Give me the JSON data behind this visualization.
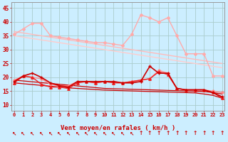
{
  "x": [
    0,
    1,
    2,
    3,
    4,
    5,
    6,
    7,
    8,
    9,
    10,
    11,
    12,
    13,
    14,
    15,
    16,
    17,
    18,
    19,
    20,
    21,
    22,
    23
  ],
  "background_color": "#cceeff",
  "grid_color": "#aacccc",
  "xlabel": "Vent moyen/en rafales ( km/h )",
  "xlabel_color": "#cc0000",
  "tick_color": "#cc0000",
  "yticks": [
    10,
    15,
    20,
    25,
    30,
    35,
    40,
    45
  ],
  "ylim": [
    8,
    47
  ],
  "xlim": [
    -0.3,
    23.3
  ],
  "lines": [
    {
      "y": [
        35.5,
        37.5,
        39.5,
        39.5,
        35.0,
        34.5,
        34.0,
        33.5,
        33.0,
        32.5,
        32.5,
        32.0,
        31.5,
        35.5,
        42.5,
        41.5,
        40.0,
        41.5,
        35.0,
        28.5,
        28.5,
        28.5,
        20.5,
        20.5
      ],
      "color": "#ffaaaa",
      "linewidth": 1.0,
      "marker": "D",
      "markersize": 2.0,
      "zorder": 3
    },
    {
      "y": [
        36.5,
        36.0,
        35.5,
        35.0,
        34.5,
        34.0,
        33.5,
        33.0,
        32.5,
        32.0,
        31.5,
        31.0,
        30.5,
        30.0,
        29.5,
        29.0,
        28.5,
        28.0,
        27.5,
        27.0,
        26.5,
        26.0,
        25.5,
        25.0
      ],
      "color": "#ffbbbb",
      "linewidth": 1.0,
      "marker": null,
      "markersize": 0,
      "zorder": 2
    },
    {
      "y": [
        35.0,
        34.5,
        34.0,
        33.5,
        33.0,
        32.5,
        32.0,
        31.5,
        31.0,
        30.5,
        30.0,
        29.5,
        29.0,
        28.5,
        28.0,
        27.5,
        27.0,
        26.5,
        26.0,
        25.5,
        25.0,
        24.5,
        24.0,
        23.5
      ],
      "color": "#ffcccc",
      "linewidth": 1.0,
      "marker": null,
      "markersize": 0,
      "zorder": 2
    },
    {
      "y": [
        19.0,
        20.5,
        20.0,
        19.5,
        17.5,
        17.0,
        17.0,
        18.5,
        18.5,
        18.0,
        18.5,
        18.5,
        18.0,
        18.5,
        19.0,
        19.5,
        22.5,
        21.5,
        16.0,
        15.5,
        15.5,
        15.5,
        15.0,
        14.5
      ],
      "color": "#ff8888",
      "linewidth": 1.0,
      "marker": "D",
      "markersize": 1.8,
      "zorder": 3
    },
    {
      "y": [
        18.5,
        20.5,
        21.5,
        20.0,
        18.0,
        17.0,
        16.5,
        18.5,
        18.5,
        18.5,
        18.5,
        18.5,
        18.0,
        18.0,
        18.5,
        24.0,
        21.5,
        21.5,
        16.0,
        15.5,
        15.5,
        15.5,
        14.5,
        13.0
      ],
      "color": "#cc0000",
      "linewidth": 1.2,
      "marker": "+",
      "markersize": 3.5,
      "zorder": 4
    },
    {
      "y": [
        19.0,
        18.7,
        18.4,
        18.1,
        17.8,
        17.5,
        17.2,
        16.9,
        16.6,
        16.3,
        16.0,
        15.9,
        15.8,
        15.7,
        15.6,
        15.5,
        15.4,
        15.3,
        15.2,
        15.1,
        15.0,
        14.9,
        14.5,
        14.0
      ],
      "color": "#cc0000",
      "linewidth": 0.9,
      "marker": null,
      "markersize": 0,
      "zorder": 2
    },
    {
      "y": [
        18.0,
        17.7,
        17.4,
        17.1,
        16.8,
        16.5,
        16.2,
        16.0,
        15.8,
        15.6,
        15.4,
        15.3,
        15.2,
        15.1,
        15.0,
        14.9,
        14.8,
        14.7,
        14.6,
        14.5,
        14.4,
        14.0,
        13.5,
        12.5
      ],
      "color": "#cc0000",
      "linewidth": 0.9,
      "marker": null,
      "markersize": 0,
      "zorder": 2
    },
    {
      "y": [
        18.0,
        20.5,
        20.0,
        17.5,
        16.5,
        16.5,
        16.0,
        18.0,
        18.5,
        18.0,
        18.5,
        18.0,
        18.0,
        18.5,
        19.0,
        19.5,
        22.0,
        21.0,
        16.0,
        15.5,
        15.5,
        15.5,
        14.5,
        12.5
      ],
      "color": "#ee2222",
      "linewidth": 1.0,
      "marker": "^",
      "markersize": 2.5,
      "zorder": 3
    }
  ],
  "wind_arrows_nw": [
    0,
    1,
    2,
    3,
    4,
    5,
    6,
    7,
    8,
    9,
    10,
    11,
    12,
    13
  ],
  "wind_arrows_n": [
    14,
    15,
    16,
    17,
    18,
    19,
    20,
    21,
    22,
    23
  ]
}
